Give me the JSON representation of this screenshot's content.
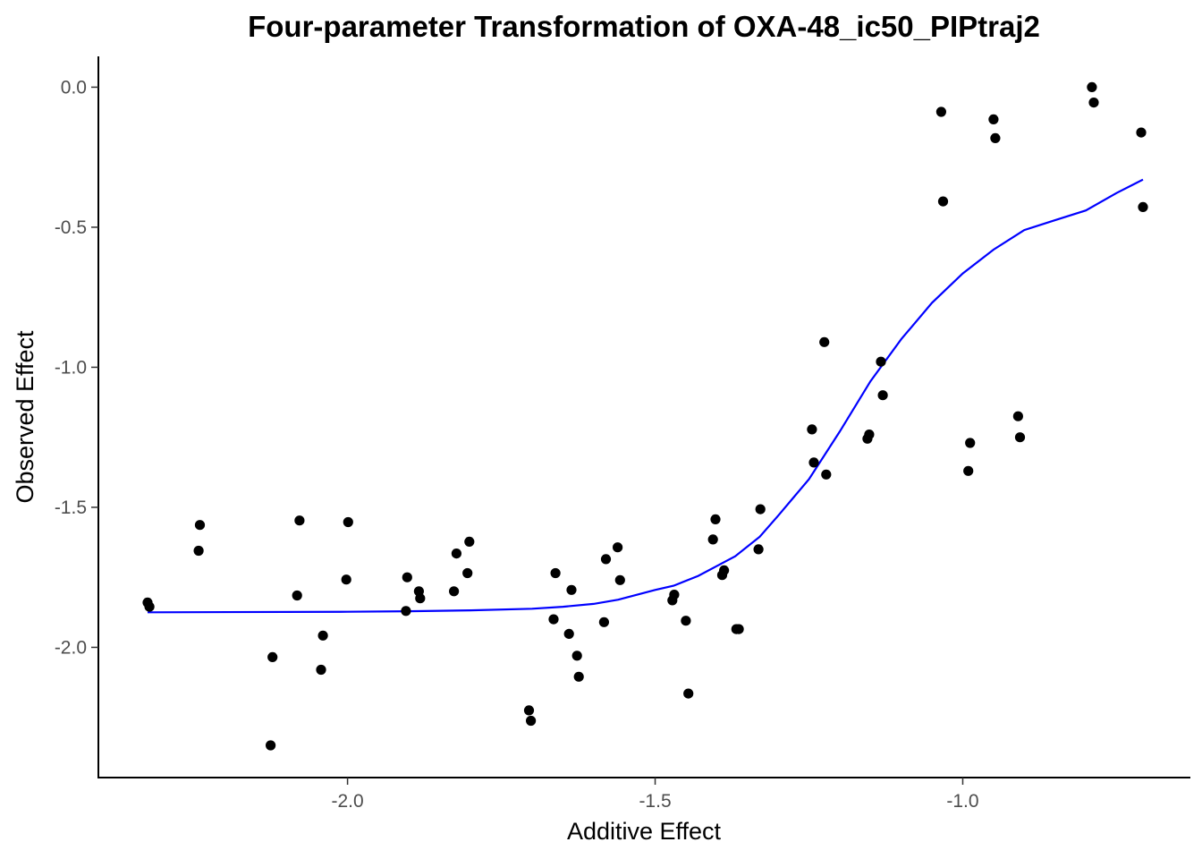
{
  "chart_data": {
    "type": "scatter",
    "title": "Four-parameter Transformation of OXA-48_ic50_PIPtraj2",
    "xlabel": "Additive Effect",
    "ylabel": "Observed Effect",
    "xlim": [
      -2.405,
      -0.63
    ],
    "ylim": [
      -2.465,
      0.11
    ],
    "x_ticks": [
      -2.0,
      -1.5,
      -1.0
    ],
    "x_tick_labels": [
      "-2.0",
      "-1.5",
      "-1.0"
    ],
    "y_ticks": [
      0.0,
      -0.5,
      -1.0,
      -1.5,
      -2.0
    ],
    "y_tick_labels": [
      "0.0",
      "-0.5",
      "-1.0",
      "-1.5",
      "-2.0"
    ],
    "grid": false,
    "legend": "none",
    "colors": {
      "points": "#000000",
      "fit_line": "#0000ff"
    },
    "points": [
      {
        "x": -2.325,
        "y": -1.84
      },
      {
        "x": -2.322,
        "y": -1.855
      },
      {
        "x": -2.242,
        "y": -1.655
      },
      {
        "x": -2.24,
        "y": -1.563
      },
      {
        "x": -2.125,
        "y": -2.35
      },
      {
        "x": -2.122,
        "y": -2.035
      },
      {
        "x": -2.082,
        "y": -1.815
      },
      {
        "x": -2.078,
        "y": -1.547
      },
      {
        "x": -2.043,
        "y": -2.08
      },
      {
        "x": -2.04,
        "y": -1.958
      },
      {
        "x": -2.002,
        "y": -1.758
      },
      {
        "x": -1.999,
        "y": -1.553
      },
      {
        "x": -1.905,
        "y": -1.87
      },
      {
        "x": -1.903,
        "y": -1.75
      },
      {
        "x": -1.884,
        "y": -1.8
      },
      {
        "x": -1.882,
        "y": -1.825
      },
      {
        "x": -1.827,
        "y": -1.8
      },
      {
        "x": -1.823,
        "y": -1.665
      },
      {
        "x": -1.805,
        "y": -1.735
      },
      {
        "x": -1.802,
        "y": -1.623
      },
      {
        "x": -1.705,
        "y": -2.225
      },
      {
        "x": -1.702,
        "y": -2.262
      },
      {
        "x": -1.665,
        "y": -1.9
      },
      {
        "x": -1.662,
        "y": -1.735
      },
      {
        "x": -1.64,
        "y": -1.952
      },
      {
        "x": -1.636,
        "y": -1.795
      },
      {
        "x": -1.627,
        "y": -2.03
      },
      {
        "x": -1.624,
        "y": -2.105
      },
      {
        "x": -1.583,
        "y": -1.91
      },
      {
        "x": -1.58,
        "y": -1.685
      },
      {
        "x": -1.561,
        "y": -1.643
      },
      {
        "x": -1.557,
        "y": -1.76
      },
      {
        "x": -1.472,
        "y": -1.832
      },
      {
        "x": -1.469,
        "y": -1.812
      },
      {
        "x": -1.45,
        "y": -1.905
      },
      {
        "x": -1.446,
        "y": -2.165
      },
      {
        "x": -1.406,
        "y": -1.615
      },
      {
        "x": -1.402,
        "y": -1.543
      },
      {
        "x": -1.391,
        "y": -1.742
      },
      {
        "x": -1.388,
        "y": -1.725
      },
      {
        "x": -1.368,
        "y": -1.935
      },
      {
        "x": -1.364,
        "y": -1.935
      },
      {
        "x": -1.332,
        "y": -1.65
      },
      {
        "x": -1.329,
        "y": -1.507
      },
      {
        "x": -1.245,
        "y": -1.222
      },
      {
        "x": -1.242,
        "y": -1.34
      },
      {
        "x": -1.225,
        "y": -0.91
      },
      {
        "x": -1.222,
        "y": -1.383
      },
      {
        "x": -1.155,
        "y": -1.255
      },
      {
        "x": -1.152,
        "y": -1.24
      },
      {
        "x": -1.133,
        "y": -0.98
      },
      {
        "x": -1.13,
        "y": -1.1
      },
      {
        "x": -1.035,
        "y": -0.088
      },
      {
        "x": -1.032,
        "y": -0.408
      },
      {
        "x": -0.991,
        "y": -1.37
      },
      {
        "x": -0.988,
        "y": -1.27
      },
      {
        "x": -0.95,
        "y": -0.115
      },
      {
        "x": -0.947,
        "y": -0.182
      },
      {
        "x": -0.91,
        "y": -1.175
      },
      {
        "x": -0.907,
        "y": -1.25
      },
      {
        "x": -0.79,
        "y": 0.0
      },
      {
        "x": -0.787,
        "y": -0.055
      },
      {
        "x": -0.71,
        "y": -0.162
      },
      {
        "x": -0.707,
        "y": -0.428
      }
    ],
    "series": [
      {
        "type": "line",
        "x": [
          -2.325,
          -2.0,
          -1.9,
          -1.8,
          -1.7,
          -1.65,
          -1.6,
          -1.56,
          -1.5,
          -1.47,
          -1.43,
          -1.4,
          -1.37,
          -1.33,
          -1.3,
          -1.25,
          -1.2,
          -1.15,
          -1.1,
          -1.05,
          -1.0,
          -0.95,
          -0.9,
          -0.85,
          -0.8,
          -0.75,
          -0.707
        ],
        "y": [
          -1.875,
          -1.873,
          -1.871,
          -1.868,
          -1.862,
          -1.855,
          -1.845,
          -1.83,
          -1.795,
          -1.78,
          -1.745,
          -1.71,
          -1.675,
          -1.605,
          -1.53,
          -1.4,
          -1.23,
          -1.05,
          -0.9,
          -0.77,
          -0.665,
          -0.58,
          -0.51,
          -0.475,
          -0.44,
          -0.378,
          -0.33
        ]
      }
    ]
  }
}
